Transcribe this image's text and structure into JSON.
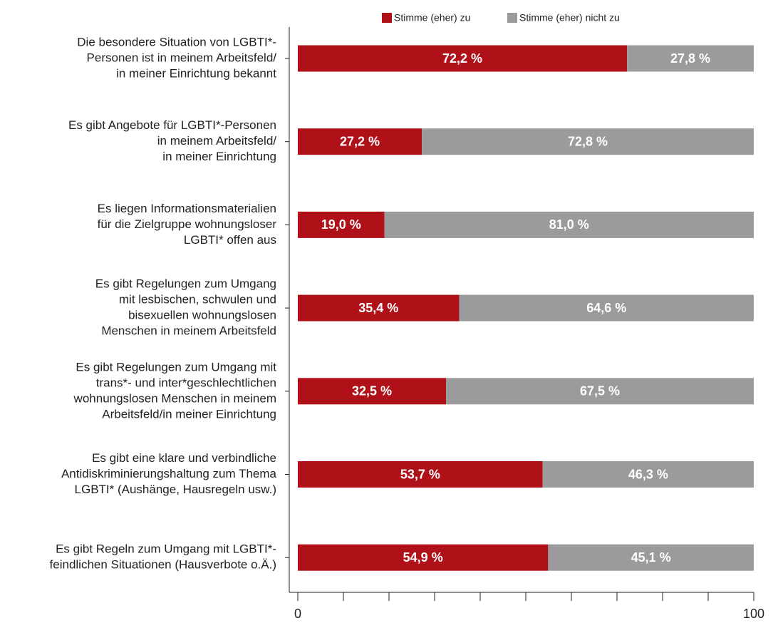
{
  "chart_data": {
    "type": "stacked_barh",
    "categories": [
      [
        "Die besondere Situation von LGBTI*-",
        "Personen ist in meinem Arbeitsfeld/",
        "in meiner Einrichtung bekannt"
      ],
      [
        "Es gibt Angebote für LGBTI*-Personen",
        "in meinem Arbeitsfeld/",
        "in meiner Einrichtung"
      ],
      [
        "Es liegen Informationsmaterialien",
        "für die Zielgruppe wohnungsloser",
        "LGBTI* offen aus"
      ],
      [
        "Es gibt Regelungen zum Umgang",
        "mit lesbischen, schwulen und",
        "bisexuellen wohnungslosen",
        "Menschen in meinem Arbeitsfeld"
      ],
      [
        "Es gibt Regelungen zum Umgang mit",
        "trans*- und inter*geschlechtlichen",
        "wohnungslosen Menschen in meinem",
        "Arbeitsfeld/in meiner Einrichtung"
      ],
      [
        "Es gibt eine klare und verbindliche",
        "Antidiskriminierungshaltung zum Thema",
        "LGBTI* (Aushänge, Hausregeln usw.)"
      ],
      [
        "Es gibt Regeln zum Umgang mit LGBTI*-",
        "feindlichen Situationen (Hausverbote o.Ä.)"
      ]
    ],
    "series": [
      {
        "name": "Stimme (eher) zu",
        "color": "#b01018",
        "values": [
          72.2,
          27.2,
          19.0,
          35.4,
          32.5,
          53.7,
          54.9
        ],
        "value_labels": [
          "72,2 %",
          "27,2 %",
          "19,0 %",
          "35,4 %",
          "32,5 %",
          "53,7 %",
          "54,9 %"
        ]
      },
      {
        "name": "Stimme (eher) nicht zu",
        "color": "#9b9b9e",
        "values": [
          27.8,
          72.8,
          81.0,
          64.6,
          67.5,
          46.3,
          45.1
        ],
        "value_labels": [
          "27,8 %",
          "72,8 %",
          "81,0 %",
          "64,6 %",
          "67,5 %",
          "46,3 %",
          "45,1 %"
        ]
      }
    ],
    "xlim": [
      0,
      100
    ],
    "xticks": [
      0,
      {
        "value": 10,
        "label": null
      },
      {
        "value": 20,
        "label": null
      },
      {
        "value": 30,
        "label": null
      },
      {
        "value": 40,
        "label": null
      },
      {
        "value": 50,
        "label": null
      },
      {
        "value": 60,
        "label": null
      },
      {
        "value": 70,
        "label": null
      },
      {
        "value": 80,
        "label": null
      },
      {
        "value": 90,
        "label": null
      },
      100
    ],
    "legend": "top"
  }
}
